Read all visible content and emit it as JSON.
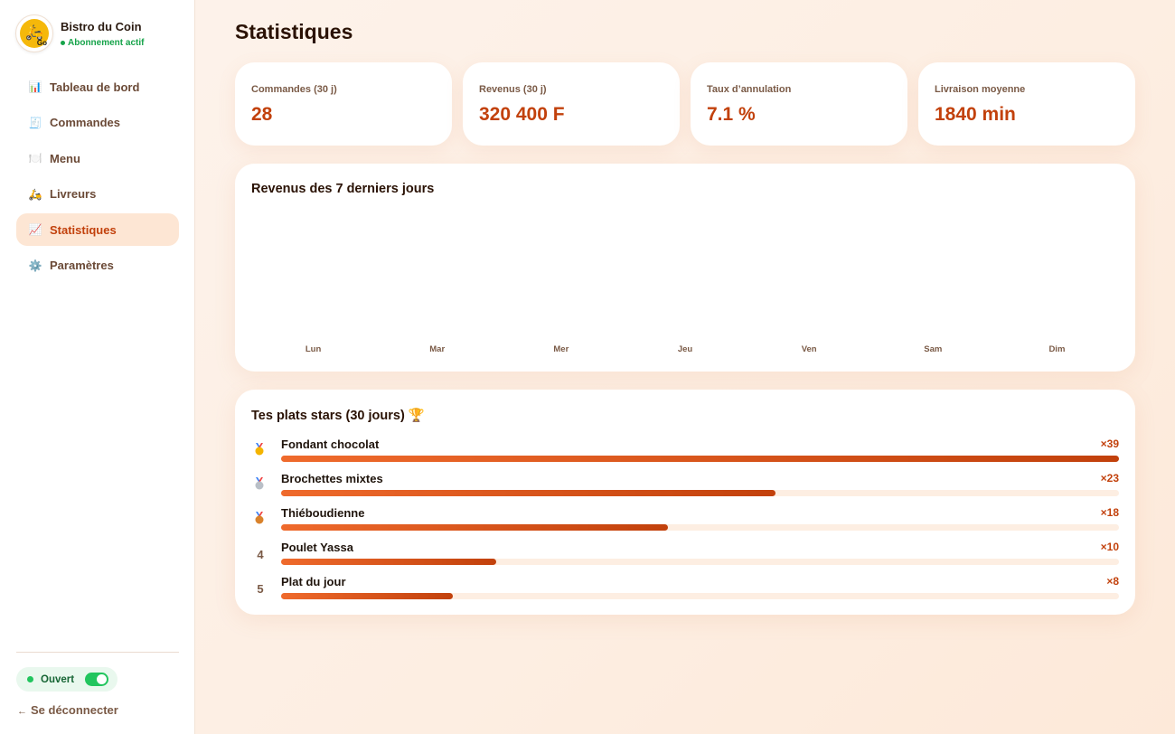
{
  "brand": {
    "name": "Bistro du Coin",
    "status": "Abonnement actif",
    "logo_text": "Go"
  },
  "nav": {
    "items": [
      {
        "label": "Tableau de bord",
        "icon": "📊",
        "icon_name": "bar-chart-icon",
        "active": false
      },
      {
        "label": "Commandes",
        "icon": "🧾",
        "icon_name": "receipt-icon",
        "active": false
      },
      {
        "label": "Menu",
        "icon": "🍽️",
        "icon_name": "plate-icon",
        "active": false
      },
      {
        "label": "Livreurs",
        "icon": "🛵",
        "icon_name": "scooter-icon",
        "active": false
      },
      {
        "label": "Statistiques",
        "icon": "📈",
        "icon_name": "trend-chart-icon",
        "active": true
      },
      {
        "label": "Paramètres",
        "icon": "⚙️",
        "icon_name": "gear-icon",
        "active": false
      }
    ]
  },
  "footer": {
    "open_label": "Ouvert",
    "open": true,
    "logout_label": "Se déconnecter",
    "logout_arrow": "←"
  },
  "page": {
    "title": "Statistiques"
  },
  "kpis": [
    {
      "label": "Commandes (30 j)",
      "value": "28"
    },
    {
      "label": "Revenus (30 j)",
      "value": "320 400 F"
    },
    {
      "label": "Taux d’annulation",
      "value": "7.1 %"
    },
    {
      "label": "Livraison moyenne",
      "value": "1840 min"
    }
  ],
  "revenue_chart": {
    "title": "Revenus des 7 derniers jours"
  },
  "chart_data": {
    "type": "bar",
    "categories": [
      "Lun",
      "Mar",
      "Mer",
      "Jeu",
      "Ven",
      "Sam",
      "Dim"
    ],
    "values": [
      0,
      0,
      0,
      0,
      0,
      0,
      0
    ],
    "title": "Revenus des 7 derniers jours"
  },
  "top_dishes": {
    "title": "Tes plats stars (30 jours) 🏆",
    "items": [
      {
        "rank": "1",
        "medal": "gold",
        "name": "Fondant chocolat",
        "count_label": "×39",
        "count": 39
      },
      {
        "rank": "2",
        "medal": "silver",
        "name": "Brochettes mixtes",
        "count_label": "×23",
        "count": 23
      },
      {
        "rank": "3",
        "medal": "bronze",
        "name": "Thiéboudienne",
        "count_label": "×18",
        "count": 18
      },
      {
        "rank": "4",
        "medal": "",
        "name": "Poulet Yassa",
        "count_label": "×10",
        "count": 10
      },
      {
        "rank": "5",
        "medal": "",
        "name": "Plat du jour",
        "count_label": "×8",
        "count": 8
      }
    ],
    "max": 39
  },
  "colors": {
    "accent": "#c2410c",
    "accent_light": "#ef6a2c",
    "active_bg": "#fde6d4",
    "success": "#16a34a"
  }
}
